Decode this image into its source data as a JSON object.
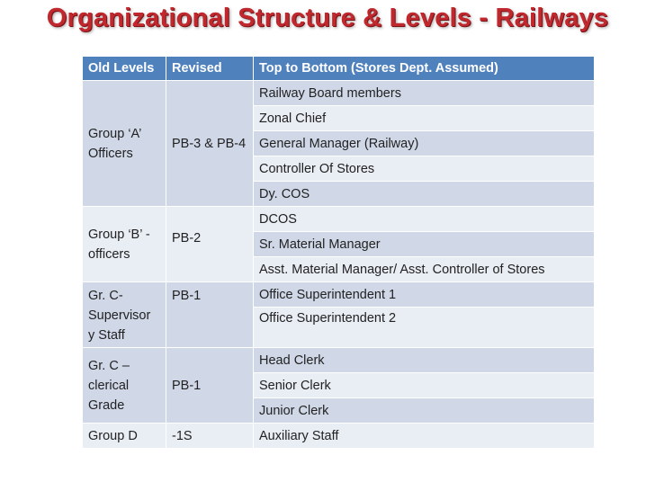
{
  "title": "Organizational Structure & Levels - Railways",
  "colors": {
    "header": "#4F81BD",
    "band_dark": "#D0D8E8",
    "band_light": "#E9EDF4",
    "title": "#C0282E"
  },
  "table": {
    "headers": [
      "Old Levels",
      "Revised",
      "Top to Bottom (Stores Dept. Assumed)"
    ],
    "groups": [
      {
        "old_level": "Group ‘A’ Officers",
        "revised": "PB-3 & PB-4",
        "positions": [
          "Railway Board members",
          "Zonal Chief",
          "General Manager (Railway)",
          "Controller Of Stores",
          "Dy. COS"
        ]
      },
      {
        "old_level": "Group ‘B’ -officers",
        "revised": "PB-2",
        "positions": [
          "DCOS",
          "Sr. Material Manager",
          "Asst. Material Manager/ Asst. Controller of Stores"
        ]
      },
      {
        "old_level": "Gr. C- Supervisor y Staff",
        "revised": "PB-1",
        "positions": [
          "Office Superintendent 1",
          "Office Superintendent 2"
        ]
      },
      {
        "old_level": "Gr. C – clerical Grade",
        "revised": "PB-1",
        "positions": [
          "Head Clerk",
          "Senior Clerk",
          "Junior Clerk"
        ]
      },
      {
        "old_level": "Group D",
        "revised": "-1S",
        "positions": [
          "Auxiliary Staff"
        ]
      }
    ]
  }
}
